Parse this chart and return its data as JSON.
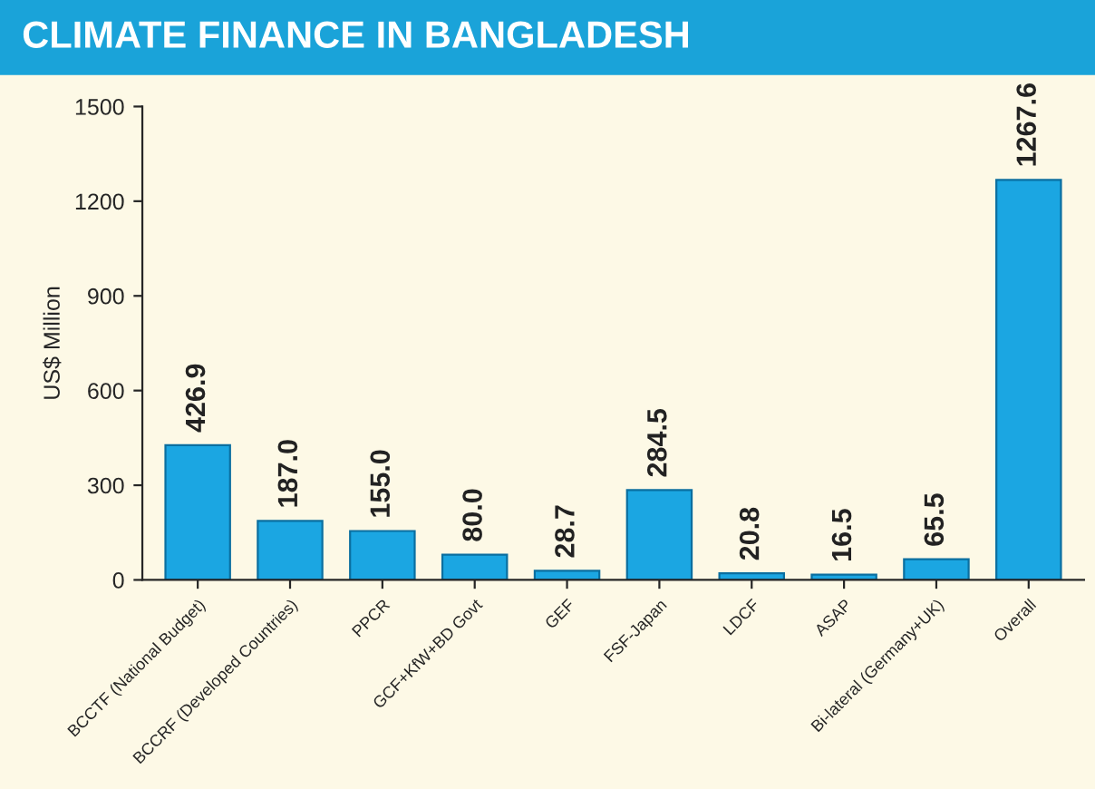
{
  "chart_data": {
    "type": "bar",
    "title": "CLIMATE FINANCE IN BANGLADESH",
    "ylabel": "US$ Million",
    "categories": [
      "BCCTF (National Budget)",
      "BCCRF (Developed Countries)",
      "PPCR",
      "GCF+KfW+BD Govt",
      "GEF",
      "FSF-Japan",
      "LDCF",
      "ASAP",
      "Bi-lateral (Germany+UK)",
      "Overall"
    ],
    "values": [
      426.9,
      187.0,
      155.0,
      80.0,
      28.7,
      284.5,
      20.8,
      16.5,
      65.5,
      1267.6
    ],
    "value_labels": [
      "426.9",
      "187.0",
      "155.0",
      "80.0",
      "28.7",
      "284.5",
      "20.8",
      "16.5",
      "65.5",
      "1267.6"
    ],
    "color": "#1ba6e2",
    "ylim": [
      0,
      1500
    ],
    "yticks": [
      0,
      300,
      600,
      900,
      1200,
      1500
    ],
    "grid": false,
    "legend": false
  }
}
